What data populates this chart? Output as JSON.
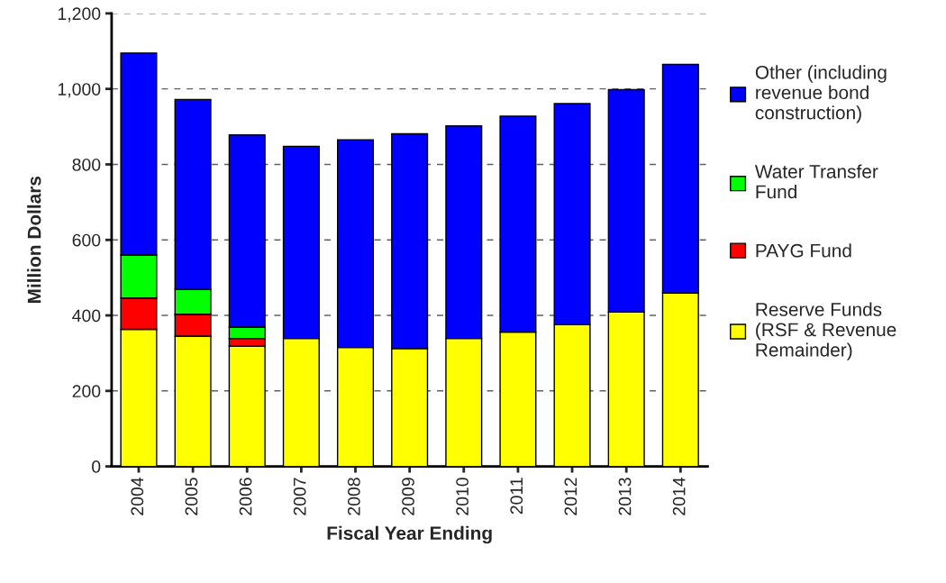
{
  "chart_data": {
    "type": "bar",
    "stacked": true,
    "xlabel": "Fiscal Year Ending",
    "ylabel": "Million Dollars",
    "categories": [
      "2004",
      "2005",
      "2006",
      "2007",
      "2008",
      "2009",
      "2010",
      "2011",
      "2012",
      "2013",
      "2014"
    ],
    "series": [
      {
        "name": "Reserve Funds\n(RSF & Revenue\nRemainder)",
        "color": "#ffff00",
        "values": [
          363,
          345,
          319,
          339,
          315,
          312,
          339,
          356,
          376,
          409,
          459
        ]
      },
      {
        "name": "PAYG Fund",
        "color": "#ff0000",
        "values": [
          83,
          58,
          20,
          null,
          null,
          null,
          null,
          null,
          null,
          null,
          null
        ]
      },
      {
        "name": "Water Transfer\nFund",
        "color": "#00ff00",
        "values": [
          114,
          66,
          30,
          null,
          null,
          null,
          null,
          null,
          null,
          null,
          null
        ]
      },
      {
        "name": "Other (including\nrevenue bond\nconstruction)",
        "color": "#0000ff",
        "values": [
          535,
          503,
          509,
          509,
          550,
          569,
          563,
          572,
          585,
          589,
          606
        ]
      }
    ],
    "ylim": [
      0,
      1200
    ],
    "yticks": [
      0,
      200,
      400,
      600,
      800,
      {
        "value": 1000,
        "label": "1,000"
      },
      {
        "value": 1200,
        "label": "1,200"
      }
    ],
    "grid": "y",
    "legend": "right"
  }
}
